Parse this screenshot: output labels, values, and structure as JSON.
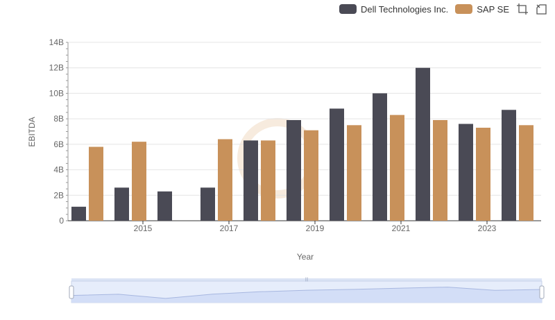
{
  "legend": {
    "items": [
      {
        "label": "Dell Technologies Inc.",
        "color": "#4a4a55"
      },
      {
        "label": "SAP SE",
        "color": "#c8915a"
      }
    ],
    "icons": [
      "zoom-select-icon",
      "zoom-reset-icon"
    ]
  },
  "chart_data": {
    "type": "bar",
    "title": "",
    "xlabel": "Year",
    "ylabel": "EBITDA",
    "ylim": [
      0,
      14
    ],
    "y_unit_suffix": "B",
    "yticks": [
      "0",
      "2B",
      "4B",
      "6B",
      "8B",
      "10B",
      "12B",
      "14B"
    ],
    "xtick_labels": [
      "2015",
      "2017",
      "2019",
      "2021",
      "2023"
    ],
    "categories": [
      "2014",
      "2015",
      "2016",
      "2017",
      "2018",
      "2019",
      "2020",
      "2021",
      "2022",
      "2023",
      "2024"
    ],
    "series": [
      {
        "name": "Dell Technologies Inc.",
        "color": "#4a4a55",
        "values": [
          1.1,
          2.6,
          2.3,
          2.6,
          6.3,
          7.9,
          8.8,
          10.0,
          12.0,
          7.6,
          8.7
        ]
      },
      {
        "name": "SAP SE",
        "color": "#c8915a",
        "values": [
          5.8,
          6.2,
          null,
          6.4,
          6.3,
          7.1,
          7.5,
          8.3,
          7.9,
          7.3,
          7.5
        ]
      }
    ],
    "grid": true,
    "legend_position": "top-right",
    "has_zoom_slider": true
  }
}
